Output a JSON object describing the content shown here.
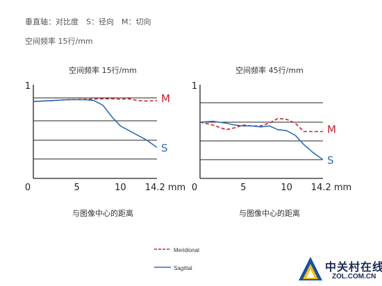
{
  "header": {
    "line1": "垂直轴：对比度　S：径向　M：切向",
    "line2": "空间频率 15行/mm"
  },
  "chart_data": [
    {
      "type": "line",
      "title": "空间频率 15行/mm",
      "xlabel": "与图像中心的距离",
      "ylabel": "",
      "xlim": [
        0,
        14.2
      ],
      "ylim": [
        0,
        1
      ],
      "x_ticks": [
        "0",
        "5",
        "10",
        "14.2 mm"
      ],
      "y_ticks": [
        "1"
      ],
      "series": [
        {
          "name": "M",
          "style": "dashed",
          "color": "#c8202a",
          "x": [
            0,
            2,
            4,
            6,
            8,
            9,
            10,
            11,
            12,
            13,
            14.2
          ],
          "y": [
            0.82,
            0.83,
            0.84,
            0.845,
            0.85,
            0.85,
            0.845,
            0.85,
            0.83,
            0.825,
            0.83
          ]
        },
        {
          "name": "S",
          "style": "solid",
          "color": "#2d6cb5",
          "x": [
            0,
            2,
            4,
            6,
            7,
            8,
            9,
            10,
            11,
            12,
            13,
            14.2
          ],
          "y": [
            0.82,
            0.83,
            0.84,
            0.84,
            0.83,
            0.78,
            0.66,
            0.56,
            0.51,
            0.46,
            0.41,
            0.33
          ]
        }
      ]
    },
    {
      "type": "line",
      "title": "空间频率 45行/mm",
      "xlabel": "与图像中心的距离",
      "ylabel": "",
      "xlim": [
        0,
        14.2
      ],
      "ylim": [
        0,
        1
      ],
      "x_ticks": [
        "0",
        "5",
        "10",
        "14.2 mm"
      ],
      "y_ticks": [
        "1"
      ],
      "series": [
        {
          "name": "M",
          "style": "dashed",
          "color": "#c8202a",
          "x": [
            0,
            1.5,
            3,
            4,
            5,
            6,
            7,
            8,
            9,
            10,
            11,
            12,
            13,
            14.2
          ],
          "y": [
            0.6,
            0.57,
            0.52,
            0.54,
            0.57,
            0.56,
            0.56,
            0.59,
            0.64,
            0.63,
            0.59,
            0.5,
            0.5,
            0.5
          ]
        },
        {
          "name": "S",
          "style": "solid",
          "color": "#2d6cb5",
          "x": [
            0,
            1.5,
            3,
            4,
            5,
            6,
            7,
            8,
            9,
            10,
            11,
            12,
            13,
            14.2
          ],
          "y": [
            0.6,
            0.61,
            0.59,
            0.57,
            0.56,
            0.56,
            0.55,
            0.56,
            0.52,
            0.51,
            0.46,
            0.36,
            0.28,
            0.2
          ]
        }
      ]
    }
  ],
  "legend": {
    "items": [
      {
        "label": "Meridional",
        "color": "#c8202a",
        "style": "dashed"
      },
      {
        "label": "Sagittal",
        "color": "#2d6cb5",
        "style": "solid"
      }
    ]
  },
  "watermark": {
    "text_cn": "中关村在线",
    "text_en": "ZOL.COM.CN"
  },
  "colors": {
    "axis": "#222222",
    "grid": "#222222",
    "m_line": "#c8202a",
    "s_line": "#2d6cb5",
    "logo_blue": "#1a4fa0",
    "logo_yellow": "#f3c316"
  }
}
